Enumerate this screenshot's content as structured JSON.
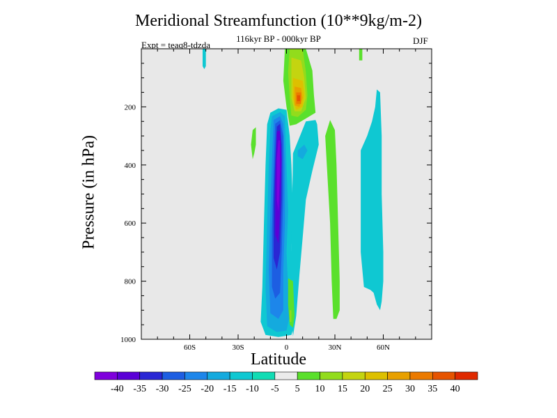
{
  "header": {
    "title": "Meridional Streamfunction (10**9kg/m-2)",
    "subtitle": "116kyr BP - 000kyr BP",
    "expt": "Expt = teaq8-tdzda",
    "season": "DJF"
  },
  "colors": {
    "background": "#e8e8e8",
    "levels": [
      "#7f00dc",
      "#5a00d6",
      "#2a27d4",
      "#1d5ee2",
      "#1d86ea",
      "#14aade",
      "#0fc8d2",
      "#10dcb4",
      "#ebebeb",
      "#5ae02c",
      "#92dc1c",
      "#c4d410",
      "#ddc000",
      "#e8a000",
      "#eb7a00",
      "#e65400",
      "#e02a00"
    ]
  },
  "chart_data": {
    "type": "contour",
    "title": "Meridional Streamfunction (10**9kg/m-2)",
    "subtitle": "116kyr BP - 000kyr BP",
    "xlabel": "Latitude",
    "ylabel": "Pressure (in hPa)",
    "xlim": [
      -90,
      90
    ],
    "ylim": [
      1000,
      0
    ],
    "x_ticks": [
      {
        "v": -60,
        "label": "60S"
      },
      {
        "v": -30,
        "label": "30S"
      },
      {
        "v": 0,
        "label": "0"
      },
      {
        "v": 30,
        "label": "30N"
      },
      {
        "v": 60,
        "label": "60N"
      }
    ],
    "y_ticks": [
      {
        "v": 200,
        "label": "200"
      },
      {
        "v": 400,
        "label": "400"
      },
      {
        "v": 600,
        "label": "600"
      },
      {
        "v": 800,
        "label": "800"
      },
      {
        "v": 1000,
        "label": "1000"
      }
    ],
    "colorbar_labels": [
      "-40",
      "-35",
      "-30",
      "-25",
      "-20",
      "-15",
      "-10",
      "-5",
      "5",
      "10",
      "15",
      "20",
      "25",
      "30",
      "35",
      "40"
    ],
    "contour_regions": [
      {
        "name": "southern-cell-outer",
        "level": -10,
        "points": [
          [
            -10,
            220
          ],
          [
            -5,
            205
          ],
          [
            0,
            210
          ],
          [
            2,
            300
          ],
          [
            3,
            400
          ],
          [
            4,
            550
          ],
          [
            3,
            700
          ],
          [
            4,
            820
          ],
          [
            5,
            950
          ],
          [
            3,
            985
          ],
          [
            -5,
            992
          ],
          [
            -13,
            985
          ],
          [
            -16,
            940
          ],
          [
            -15,
            820
          ],
          [
            -14,
            600
          ],
          [
            -13,
            400
          ],
          [
            -12,
            260
          ]
        ]
      },
      {
        "name": "southern-cell-m15",
        "level": -15,
        "points": [
          [
            -9,
            232
          ],
          [
            -4,
            218
          ],
          [
            -1,
            232
          ],
          [
            0,
            400
          ],
          [
            1,
            560
          ],
          [
            0,
            700
          ],
          [
            1,
            820
          ],
          [
            2,
            920
          ],
          [
            0,
            970
          ],
          [
            -6,
            975
          ],
          [
            -12,
            955
          ],
          [
            -13,
            820
          ],
          [
            -12,
            600
          ],
          [
            -11,
            400
          ],
          [
            -10,
            280
          ]
        ]
      },
      {
        "name": "southern-cell-m20",
        "level": -20,
        "points": [
          [
            -8,
            245
          ],
          [
            -4,
            232
          ],
          [
            -2,
            260
          ],
          [
            -1,
            400
          ],
          [
            -1,
            600
          ],
          [
            -2,
            760
          ],
          [
            -2,
            900
          ],
          [
            -5,
            930
          ],
          [
            -10,
            910
          ],
          [
            -11,
            760
          ],
          [
            -10,
            560
          ],
          [
            -9,
            380
          ]
        ]
      },
      {
        "name": "southern-cell-m25",
        "level": -25,
        "points": [
          [
            -7,
            258
          ],
          [
            -4,
            246
          ],
          [
            -2,
            300
          ],
          [
            -2,
            500
          ],
          [
            -3,
            700
          ],
          [
            -4,
            840
          ],
          [
            -7,
            860
          ],
          [
            -9,
            820
          ],
          [
            -9,
            620
          ],
          [
            -8,
            420
          ]
        ]
      },
      {
        "name": "southern-cell-m30",
        "level": -30,
        "points": [
          [
            -6,
            268
          ],
          [
            -4,
            258
          ],
          [
            -3,
            330
          ],
          [
            -3,
            520
          ],
          [
            -4,
            700
          ],
          [
            -6,
            760
          ],
          [
            -8,
            720
          ],
          [
            -8,
            540
          ],
          [
            -7,
            380
          ]
        ]
      },
      {
        "name": "southern-cell-m35",
        "level": -35,
        "points": [
          [
            -6,
            285
          ],
          [
            -4,
            282
          ],
          [
            -3,
            380
          ],
          [
            -4,
            560
          ],
          [
            -5,
            670
          ],
          [
            -7,
            640
          ],
          [
            -7,
            460
          ]
        ]
      },
      {
        "name": "southern-cell-m40",
        "level": -40,
        "points": [
          [
            -5,
            315
          ],
          [
            -4,
            315
          ],
          [
            -4,
            420
          ],
          [
            -5,
            560
          ],
          [
            -6,
            520
          ],
          [
            -6,
            380
          ]
        ]
      },
      {
        "name": "northern-band",
        "level": -10,
        "points": [
          [
            4,
            360
          ],
          [
            12,
            250
          ],
          [
            18,
            245
          ],
          [
            19,
            260
          ],
          [
            20,
            330
          ],
          [
            16,
            420
          ],
          [
            12,
            520
          ],
          [
            10,
            650
          ],
          [
            8,
            780
          ],
          [
            6,
            920
          ],
          [
            4,
            990
          ],
          [
            3,
            900
          ],
          [
            3,
            700
          ]
        ]
      },
      {
        "name": "northern-band-core",
        "level": -15,
        "points": [
          [
            7,
            350
          ],
          [
            11,
            330
          ],
          [
            13,
            350
          ],
          [
            10,
            380
          ],
          [
            7,
            370
          ]
        ]
      },
      {
        "name": "tropical-upper-green",
        "level": 5,
        "points": [
          [
            -1,
            0
          ],
          [
            12,
            0
          ],
          [
            16,
            75
          ],
          [
            17,
            160
          ],
          [
            18,
            220
          ],
          [
            12,
            240
          ],
          [
            6,
            260
          ],
          [
            2,
            265
          ],
          [
            0,
            200
          ],
          [
            -2,
            110
          ]
        ]
      },
      {
        "name": "tropical-upper-10",
        "level": 10,
        "points": [
          [
            2,
            0
          ],
          [
            10,
            0
          ],
          [
            12,
            80
          ],
          [
            13,
            160
          ],
          [
            12,
            210
          ],
          [
            7,
            235
          ],
          [
            3,
            230
          ],
          [
            2,
            170
          ],
          [
            1,
            80
          ]
        ]
      },
      {
        "name": "tropical-upper-15",
        "level": 15,
        "points": [
          [
            3,
            30
          ],
          [
            9,
            40
          ],
          [
            11,
            100
          ],
          [
            12,
            170
          ],
          [
            9,
            215
          ],
          [
            5,
            215
          ],
          [
            3,
            170
          ],
          [
            3,
            80
          ]
        ]
      },
      {
        "name": "tropical-upper-20",
        "level": 20,
        "points": [
          [
            4,
            100
          ],
          [
            10,
            110
          ],
          [
            11,
            160
          ],
          [
            10,
            200
          ],
          [
            6,
            210
          ],
          [
            4,
            170
          ]
        ]
      },
      {
        "name": "tropical-upper-25",
        "level": 25,
        "points": [
          [
            5,
            130
          ],
          [
            9,
            135
          ],
          [
            10,
            170
          ],
          [
            8,
            200
          ],
          [
            5,
            195
          ]
        ]
      },
      {
        "name": "tropical-upper-30",
        "level": 30,
        "points": [
          [
            6,
            150
          ],
          [
            9,
            150
          ],
          [
            9,
            190
          ],
          [
            6,
            190
          ]
        ]
      },
      {
        "name": "tropical-upper-35",
        "level": 35,
        "points": [
          [
            6.5,
            160
          ],
          [
            8.5,
            160
          ],
          [
            8.5,
            180
          ],
          [
            6.5,
            180
          ]
        ]
      },
      {
        "name": "tropical-lower-green",
        "level": 5,
        "points": [
          [
            1,
            790
          ],
          [
            4,
            800
          ],
          [
            5,
            920
          ],
          [
            4,
            960
          ],
          [
            2,
            950
          ],
          [
            1,
            880
          ]
        ]
      },
      {
        "name": "tropical-lower-10",
        "level": 10,
        "points": [
          [
            2,
            900
          ],
          [
            3,
            900
          ],
          [
            3,
            940
          ],
          [
            2,
            940
          ]
        ]
      },
      {
        "name": "nh-midlat-band",
        "level": 5,
        "points": [
          [
            27,
            245
          ],
          [
            30,
            280
          ],
          [
            31,
            400
          ],
          [
            32,
            600
          ],
          [
            33,
            800
          ],
          [
            33,
            900
          ],
          [
            31,
            930
          ],
          [
            29,
            930
          ],
          [
            28,
            800
          ],
          [
            27,
            600
          ],
          [
            25,
            400
          ],
          [
            24,
            300
          ]
        ]
      },
      {
        "name": "sh-green-strip",
        "level": 5,
        "points": [
          [
            -21,
            280
          ],
          [
            -19,
            270
          ],
          [
            -19,
            330
          ],
          [
            -20,
            360
          ],
          [
            -21,
            380
          ],
          [
            -22,
            330
          ]
        ]
      },
      {
        "name": "high-lat-cyan",
        "level": -10,
        "points": [
          [
            56,
            140
          ],
          [
            58,
            150
          ],
          [
            59,
            300
          ],
          [
            59,
            500
          ],
          [
            60,
            700
          ],
          [
            60,
            800
          ],
          [
            59,
            870
          ],
          [
            58,
            900
          ],
          [
            56,
            880
          ],
          [
            54,
            840
          ],
          [
            52,
            830
          ],
          [
            48,
            820
          ],
          [
            46,
            700
          ],
          [
            46,
            500
          ],
          [
            46,
            350
          ],
          [
            50,
            300
          ],
          [
            53,
            250
          ],
          [
            55,
            200
          ]
        ]
      },
      {
        "name": "nh-green-top",
        "level": 5,
        "points": [
          [
            45,
            0
          ],
          [
            47,
            0
          ],
          [
            47,
            40
          ],
          [
            45,
            40
          ]
        ]
      },
      {
        "name": "sh-cyan-top",
        "level": -10,
        "points": [
          [
            -52,
            0
          ],
          [
            -50,
            0
          ],
          [
            -50,
            60
          ],
          [
            -51,
            70
          ],
          [
            -52,
            60
          ]
        ]
      }
    ]
  }
}
